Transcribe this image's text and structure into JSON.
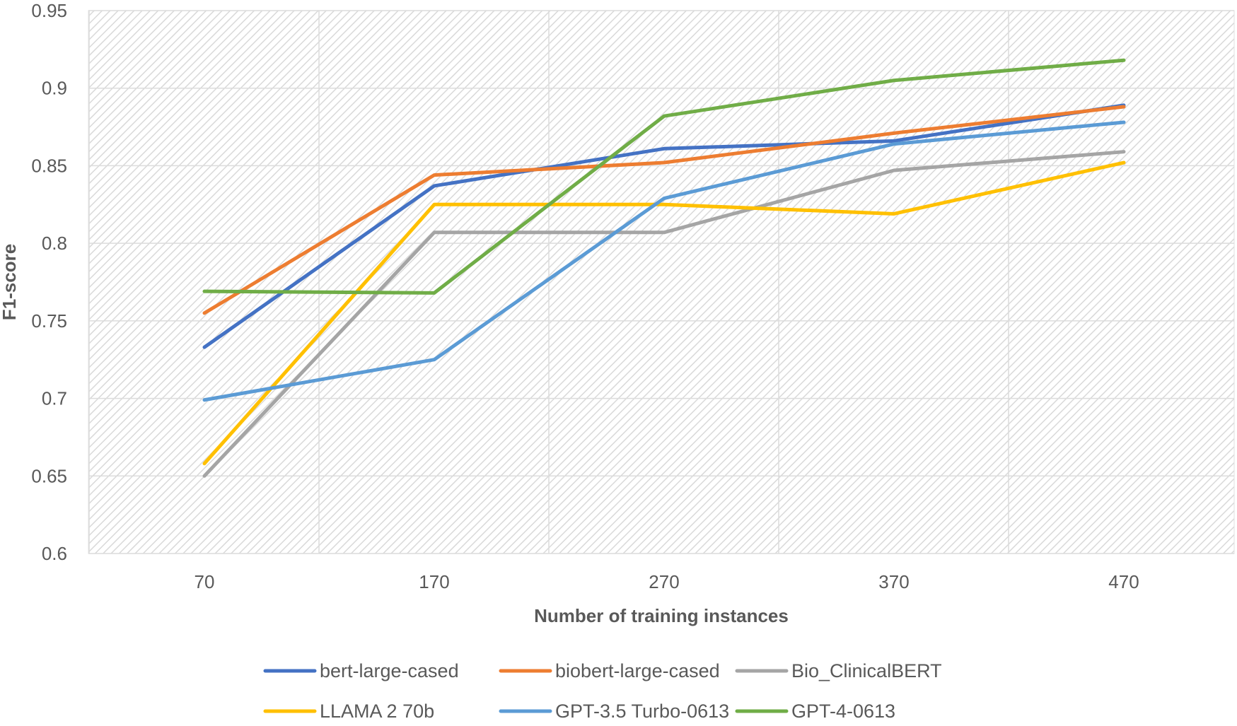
{
  "chart_data": {
    "type": "line",
    "title": "",
    "xlabel": "Number of training instances",
    "ylabel": "F1-score",
    "x": [
      70,
      170,
      270,
      370,
      470
    ],
    "ylim": [
      0.6,
      0.95
    ],
    "y_ticks": [
      "0.6",
      "0.65",
      "0.7",
      "0.75",
      "0.8",
      "0.85",
      "0.9",
      "0.95"
    ],
    "y_tick_values": [
      0.6,
      0.65,
      0.7,
      0.75,
      0.8,
      0.85,
      0.9,
      0.95
    ],
    "x_ticks": [
      "70",
      "170",
      "270",
      "370",
      "470"
    ],
    "grid": true,
    "legend_position": "bottom",
    "series": [
      {
        "name": "bert-large-cased",
        "color": "#4472C4",
        "values": [
          0.733,
          0.837,
          0.861,
          0.866,
          0.889
        ]
      },
      {
        "name": "biobert-large-cased",
        "color": "#ED7D31",
        "values": [
          0.755,
          0.844,
          0.852,
          0.871,
          0.888
        ]
      },
      {
        "name": "Bio_ClinicalBERT",
        "color": "#A5A5A5",
        "values": [
          0.65,
          0.807,
          0.807,
          0.847,
          0.859
        ]
      },
      {
        "name": "LLAMA 2 70b",
        "color": "#FFC000",
        "values": [
          0.658,
          0.825,
          0.825,
          0.819,
          0.852
        ]
      },
      {
        "name": "GPT-3.5 Turbo-0613",
        "color": "#5B9BD5",
        "values": [
          0.699,
          0.725,
          0.829,
          0.864,
          0.878
        ]
      },
      {
        "name": "GPT-4-0613",
        "color": "#70AD47",
        "values": [
          0.769,
          0.768,
          0.882,
          0.905,
          0.918
        ]
      }
    ]
  }
}
